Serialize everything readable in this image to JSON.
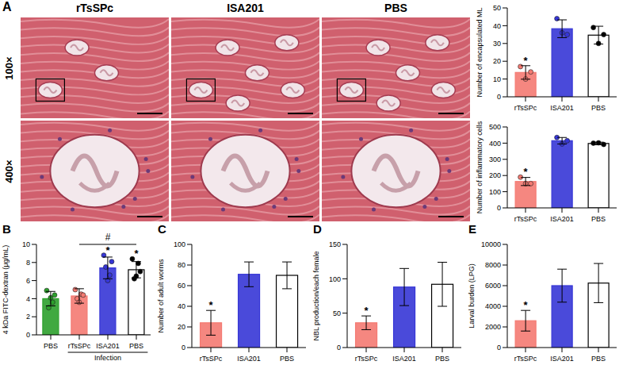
{
  "histology": {
    "panel": "A",
    "columns": [
      "rTsSPc",
      "ISA201",
      "PBS"
    ],
    "rows": [
      "100×",
      "400×"
    ]
  },
  "chart_data": [
    {
      "type": "bar",
      "y_label": "Number of encapsulated ML",
      "categories": [
        "rTsSPc",
        "ISA201",
        "PBS"
      ],
      "values": [
        13.7,
        38.3,
        34.7
      ],
      "errors": [
        3.8,
        5.0,
        5.0
      ],
      "points": [
        [
          17,
          10,
          14
        ],
        [
          44,
          36,
          35
        ],
        [
          39,
          30,
          35
        ]
      ],
      "colors": [
        "#f47a72",
        "#3636d6",
        "#ffffff"
      ],
      "annotations": [
        "*",
        null,
        null
      ],
      "ylim": [
        0,
        50
      ],
      "yticks": [
        0,
        10,
        20,
        30,
        40,
        50
      ]
    },
    {
      "type": "bar",
      "y_label": "Number of inflammatory cells",
      "categories": [
        "rTsSPc",
        "ISA201",
        "PBS"
      ],
      "values": [
        163,
        415,
        398
      ],
      "errors": [
        25,
        20,
        8
      ],
      "points": [
        [
          190,
          150,
          150
        ],
        [
          435,
          395,
          415
        ],
        [
          400,
          402,
          392
        ]
      ],
      "colors": [
        "#f47a72",
        "#3636d6",
        "#ffffff"
      ],
      "annotations": [
        "*",
        null,
        null
      ],
      "ylim": [
        0,
        500
      ],
      "yticks": [
        0,
        100,
        200,
        300,
        400,
        500
      ]
    },
    {
      "type": "bar",
      "panel": "B",
      "y_label": "4 kDa FITC-dextran (μg/mL)",
      "categories": [
        "PBS",
        "rTsSPc",
        "ISA201",
        "PBS"
      ],
      "values": [
        4.0,
        4.3,
        7.4,
        7.2
      ],
      "errors": [
        0.8,
        0.8,
        1.2,
        0.9
      ],
      "points": [
        [
          4.9,
          3.0,
          4.1,
          3.6,
          4.4
        ],
        [
          5.0,
          4.0,
          3.6,
          4.5,
          4.4
        ],
        [
          8.8,
          7.5,
          6.0,
          6.6,
          8.1
        ],
        [
          8.4,
          6.2,
          6.5,
          7.9,
          7.0
        ]
      ],
      "colors": [
        "#2ca02c",
        "#f47a72",
        "#3636d6",
        "#ffffff"
      ],
      "annotations": [
        null,
        null,
        "*",
        "*"
      ],
      "group": {
        "label": "Infection",
        "from": 1,
        "to": 3
      },
      "comparison": {
        "label": "#",
        "from": 1,
        "to": 3
      },
      "ylim": [
        0,
        10
      ],
      "yticks": [
        0,
        2,
        4,
        6,
        8,
        10
      ]
    },
    {
      "type": "bar",
      "panel": "C",
      "y_label": "Number of adult worms",
      "categories": [
        "rTsSPc",
        "ISA201",
        "PBS"
      ],
      "values": [
        24,
        71,
        70
      ],
      "errors": [
        12,
        12,
        13
      ],
      "points": [
        [],
        [],
        []
      ],
      "colors": [
        "#f47a72",
        "#3636d6",
        "#ffffff"
      ],
      "annotations": [
        "*",
        null,
        null
      ],
      "ylim": [
        0,
        100
      ],
      "yticks": [
        0,
        20,
        40,
        60,
        80,
        100
      ]
    },
    {
      "type": "bar",
      "panel": "D",
      "y_label": "NBL production/each female",
      "categories": [
        "rTsSPc",
        "ISA201",
        "PBS"
      ],
      "values": [
        36,
        88,
        92
      ],
      "errors": [
        10,
        27,
        32
      ],
      "points": [
        [],
        [],
        []
      ],
      "colors": [
        "#f47a72",
        "#3636d6",
        "#ffffff"
      ],
      "annotations": [
        "*",
        null,
        null
      ],
      "ylim": [
        0,
        150
      ],
      "yticks": [
        0,
        50,
        100,
        150
      ]
    },
    {
      "type": "bar",
      "panel": "E",
      "y_label": "Larval burden (LPG)",
      "categories": [
        "rTsSPc",
        "ISA201",
        "PBS"
      ],
      "values": [
        2600,
        6000,
        6250
      ],
      "errors": [
        1000,
        1600,
        1900
      ],
      "points": [
        [],
        [],
        []
      ],
      "colors": [
        "#f47a72",
        "#3636d6",
        "#ffffff"
      ],
      "annotations": [
        "*",
        null,
        null
      ],
      "ylim": [
        0,
        10000
      ],
      "yticks": [
        0,
        2000,
        4000,
        6000,
        8000,
        10000
      ]
    }
  ]
}
